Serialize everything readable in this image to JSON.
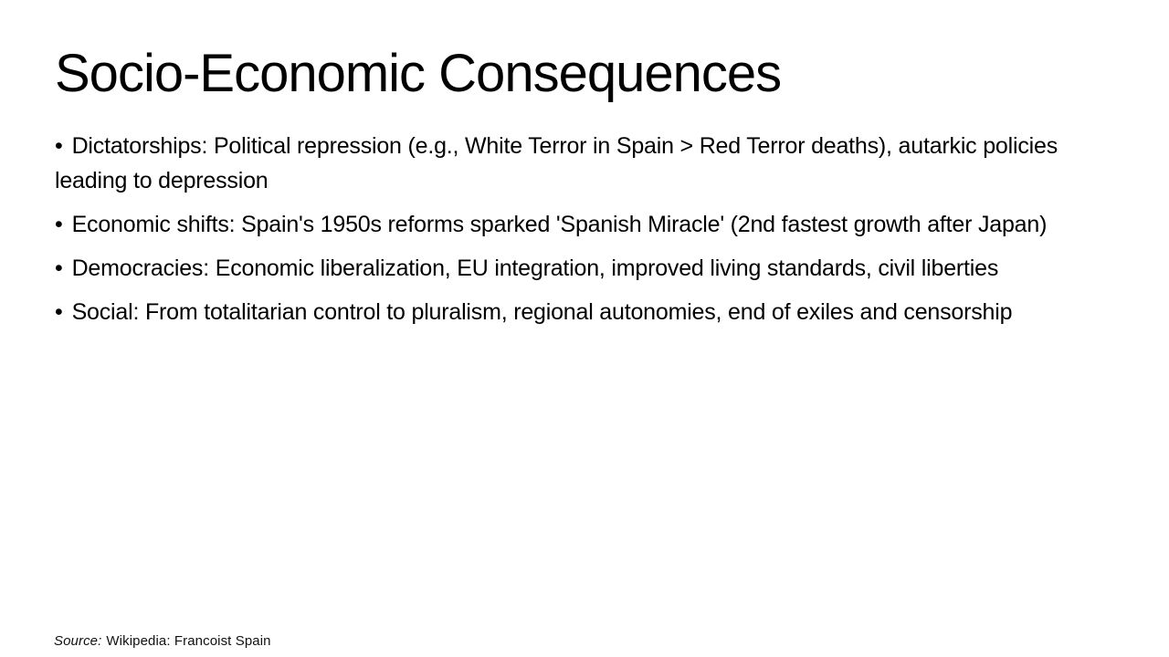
{
  "slide": {
    "title": "Socio-Economic Consequences",
    "bullet_char": "•",
    "bullets": [
      "Dictatorships: Political repression (e.g., White Terror in Spain > Red Terror deaths), autarkic policies leading to depression",
      "Economic shifts: Spain's 1950s reforms sparked 'Spanish Miracle' (2nd fastest growth after Japan)",
      "Democracies: Economic liberalization, EU integration, improved living standards, civil liberties",
      "Social: From totalitarian control to pluralism, regional autonomies, end of exiles and censorship"
    ],
    "footer": {
      "source_label": "Source:",
      "source_text": "Wikipedia: Francoist Spain"
    },
    "colors": {
      "background": "#ffffff",
      "text": "#000000"
    }
  }
}
